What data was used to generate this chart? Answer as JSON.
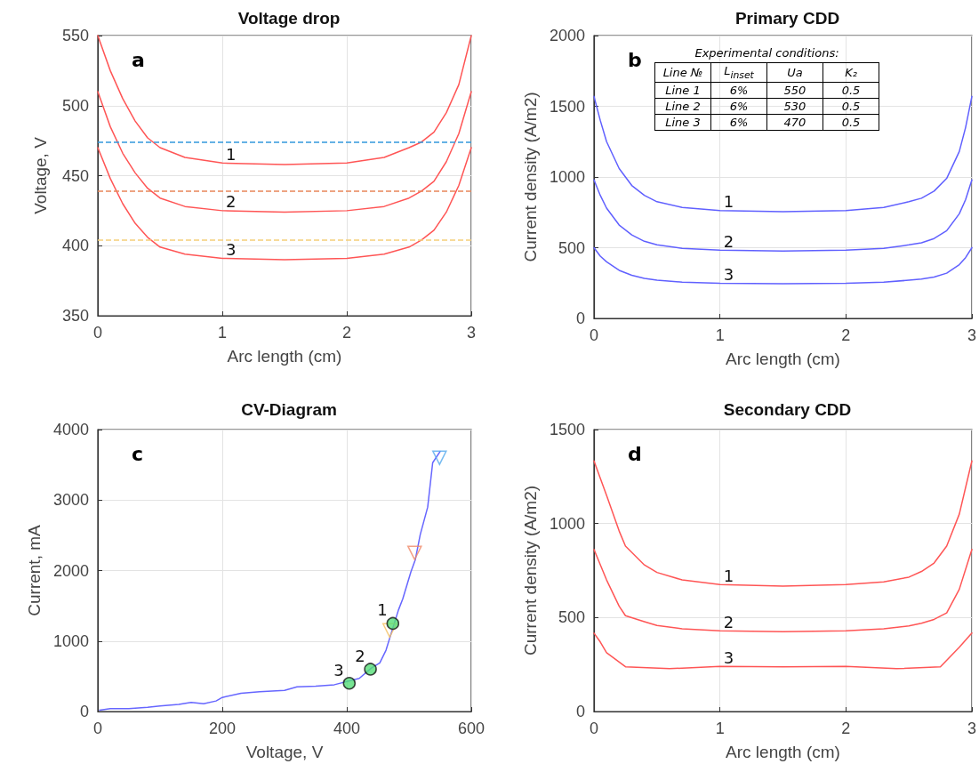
{
  "chart_data": [
    {
      "type": "line",
      "title": "Voltage drop",
      "xlabel": "Arc length (cm)",
      "ylabel": "Voltage, V",
      "xlim": [
        0,
        3
      ],
      "xticks": [
        0,
        1,
        2,
        3
      ],
      "ylim": [
        350,
        550
      ],
      "yticks": [
        350,
        400,
        450,
        500,
        550
      ],
      "grid": true,
      "marker": "none",
      "series": [
        {
          "color": "#ff5555",
          "x": [
            0,
            0.1,
            0.2,
            0.3,
            0.4,
            0.5,
            0.7,
            1.0,
            1.5,
            2.0,
            2.3,
            2.5,
            2.6,
            2.7,
            2.8,
            2.9,
            3.0
          ],
          "values": [
            550,
            525,
            505,
            489,
            477,
            470,
            463,
            459,
            458,
            459,
            463,
            470,
            474,
            481,
            495,
            515,
            550
          ]
        },
        {
          "color": "#ff5555",
          "x": [
            0,
            0.1,
            0.2,
            0.3,
            0.4,
            0.5,
            0.7,
            1.0,
            1.5,
            2.0,
            2.3,
            2.5,
            2.6,
            2.7,
            2.8,
            2.9,
            3.0
          ],
          "values": [
            510,
            485,
            466,
            452,
            441,
            434,
            428,
            425,
            424,
            425,
            428,
            434,
            439,
            446,
            460,
            480,
            510
          ]
        },
        {
          "color": "#ff5555",
          "x": [
            0,
            0.1,
            0.2,
            0.3,
            0.4,
            0.5,
            0.7,
            1.0,
            1.5,
            2.0,
            2.3,
            2.5,
            2.6,
            2.7,
            2.8,
            2.9,
            3.0
          ],
          "values": [
            470,
            448,
            430,
            416,
            406,
            399,
            394,
            391,
            390,
            391,
            394,
            399,
            404,
            411,
            424,
            443,
            470
          ]
        }
      ],
      "ref_lines": [
        {
          "axis": "y",
          "value": 474,
          "color": "#3399dd",
          "line_style": "dashed"
        },
        {
          "axis": "y",
          "value": 439,
          "color": "#e8865a",
          "line_style": "dashed"
        },
        {
          "axis": "y",
          "value": 404,
          "color": "#f5cf7a",
          "line_style": "dashed"
        }
      ],
      "annotations": [
        "a",
        {
          "text": "1",
          "x": 1.0,
          "y": 459
        },
        {
          "text": "2",
          "x": 1.0,
          "y": 425
        },
        {
          "text": "3",
          "x": 1.0,
          "y": 391
        }
      ]
    },
    {
      "type": "line",
      "title": "Primary CDD",
      "xlabel": "Arc length (cm)",
      "ylabel": "Current density (A/m2)",
      "xlim": [
        0,
        3
      ],
      "xticks": [
        0,
        1,
        2,
        3
      ],
      "ylim": [
        0,
        2000
      ],
      "yticks": [
        0,
        500,
        1000,
        1500,
        2000
      ],
      "grid": true,
      "marker": "none",
      "series": [
        {
          "color": "#6060ff",
          "x": [
            0,
            0.05,
            0.1,
            0.2,
            0.3,
            0.4,
            0.5,
            0.7,
            1.0,
            1.5,
            2.0,
            2.3,
            2.5,
            2.6,
            2.7,
            2.8,
            2.9,
            2.95,
            3.0
          ],
          "values": [
            1570,
            1400,
            1250,
            1060,
            940,
            870,
            825,
            785,
            762,
            755,
            762,
            785,
            825,
            850,
            900,
            990,
            1180,
            1350,
            1570
          ]
        },
        {
          "color": "#6060ff",
          "x": [
            0,
            0.05,
            0.1,
            0.2,
            0.3,
            0.4,
            0.5,
            0.7,
            1.0,
            1.5,
            2.0,
            2.3,
            2.5,
            2.6,
            2.7,
            2.8,
            2.9,
            2.95,
            3.0
          ],
          "values": [
            980,
            870,
            780,
            660,
            590,
            545,
            520,
            495,
            482,
            477,
            482,
            495,
            520,
            535,
            565,
            620,
            740,
            840,
            980
          ]
        },
        {
          "color": "#6060ff",
          "x": [
            0,
            0.05,
            0.1,
            0.2,
            0.3,
            0.4,
            0.5,
            0.7,
            1.0,
            1.5,
            2.0,
            2.3,
            2.5,
            2.6,
            2.7,
            2.8,
            2.9,
            2.95,
            3.0
          ],
          "values": [
            500,
            440,
            400,
            340,
            305,
            283,
            270,
            257,
            249,
            246,
            249,
            257,
            270,
            278,
            292,
            320,
            380,
            430,
            500
          ]
        }
      ],
      "annotations": [
        "b",
        "Experimental conditions:",
        "Line №",
        "L$_{inset}$",
        "Ua",
        "K₂",
        "Line 1",
        "6%",
        "550",
        "0.5",
        "Line 2",
        "6%",
        "530",
        "0.5",
        "Line 3",
        "6%",
        "470",
        "0.5",
        {
          "text": "1",
          "x": 1.0,
          "y": 762
        },
        {
          "text": "2",
          "x": 1.0,
          "y": 482
        },
        {
          "text": "3",
          "x": 1.0,
          "y": 249
        }
      ]
    },
    {
      "type": "line",
      "title": "CV-Diagram",
      "xlabel": "Voltage, V",
      "ylabel": "Current, mA",
      "xlim": [
        0,
        600
      ],
      "xticks": [
        0,
        200,
        400,
        600
      ],
      "ylim": [
        0,
        4000
      ],
      "yticks": [
        0,
        1000,
        2000,
        3000,
        4000
      ],
      "grid": true,
      "series": [
        {
          "color": "#6666ff",
          "marker": "none",
          "x": [
            3,
            20,
            50,
            80,
            100,
            130,
            150,
            170,
            190,
            200,
            230,
            260,
            300,
            320,
            350,
            380,
            420,
            440,
            453,
            463,
            483,
            490,
            503,
            510,
            518,
            530,
            538,
            550
          ],
          "values": [
            20,
            40,
            40,
            60,
            80,
            100,
            130,
            110,
            150,
            200,
            260,
            280,
            300,
            350,
            360,
            380,
            470,
            620,
            690,
            870,
            1440,
            1600,
            1980,
            2150,
            2510,
            2900,
            3530,
            3690
          ]
        },
        {
          "type": "scatter",
          "marker": "circle",
          "color": "#55dd77",
          "x": [
            404,
            438,
            474
          ],
          "values": [
            400,
            600,
            1250
          ]
        },
        {
          "type": "scatter",
          "marker": "triangle",
          "color": "#55aaee",
          "x": [
            549
          ],
          "values": [
            3600
          ]
        },
        {
          "type": "scatter",
          "marker": "triangle",
          "color": "#f08868",
          "x": [
            509
          ],
          "values": [
            2250
          ]
        },
        {
          "type": "scatter",
          "marker": "triangle",
          "color": "#f5c060",
          "x": [
            469
          ],
          "values": [
            1150
          ]
        }
      ],
      "annotations": [
        "c",
        {
          "text": "1",
          "x": 474,
          "y": 1250
        },
        {
          "text": "2",
          "x": 438,
          "y": 600
        },
        {
          "text": "3",
          "x": 404,
          "y": 400
        }
      ]
    },
    {
      "type": "line",
      "title": "Secondary CDD",
      "xlabel": "Arc length (cm)",
      "ylabel": "Current density (A/m2)",
      "xlim": [
        0,
        3
      ],
      "xticks": [
        0,
        1,
        2,
        3
      ],
      "ylim": [
        0,
        1500
      ],
      "yticks": [
        0,
        500,
        1000,
        1500
      ],
      "grid": true,
      "marker": "none",
      "series": [
        {
          "color": "#ff5555",
          "x": [
            0,
            0.1,
            0.2,
            0.25,
            0.4,
            0.5,
            0.7,
            1.0,
            1.5,
            2.0,
            2.3,
            2.5,
            2.6,
            2.7,
            2.8,
            2.9,
            3.0
          ],
          "values": [
            1333,
            1150,
            960,
            880,
            780,
            740,
            700,
            675,
            667,
            675,
            690,
            715,
            745,
            790,
            880,
            1050,
            1333
          ]
        },
        {
          "color": "#ff5555",
          "x": [
            0,
            0.1,
            0.2,
            0.25,
            0.4,
            0.5,
            0.7,
            1.0,
            1.5,
            2.0,
            2.3,
            2.5,
            2.6,
            2.7,
            2.8,
            2.9,
            3.0
          ],
          "values": [
            862,
            700,
            560,
            510,
            478,
            458,
            440,
            430,
            425,
            430,
            440,
            455,
            470,
            490,
            525,
            650,
            862
          ]
        },
        {
          "color": "#ff5555",
          "x": [
            0,
            0.05,
            0.1,
            0.25,
            0.6,
            1.0,
            1.5,
            2.0,
            2.4,
            2.75,
            2.9,
            3.0
          ],
          "values": [
            417,
            370,
            313,
            238,
            228,
            240,
            238,
            240,
            228,
            238,
            342,
            417
          ]
        }
      ],
      "annotations": [
        "d",
        {
          "text": "1",
          "x": 1.0,
          "y": 675
        },
        {
          "text": "2",
          "x": 1.0,
          "y": 430
        },
        {
          "text": "3",
          "x": 1.0,
          "y": 240
        }
      ]
    }
  ]
}
